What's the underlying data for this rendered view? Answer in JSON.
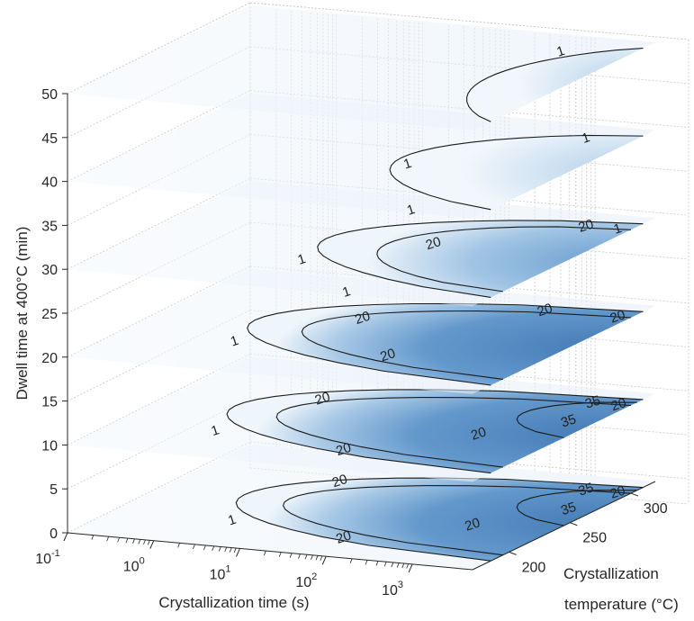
{
  "chart_data": {
    "type": "contour",
    "xlabel": "Crystallization time (s)",
    "ylabel": "Crystallization\ntemperature (°C)",
    "zlabel": "Dwell time at 400°C (min)",
    "x_scale": "log",
    "x_ticks": [
      "10",
      "10",
      "10",
      "10",
      "10"
    ],
    "x_tick_exponents": [
      "-1",
      "0",
      "1",
      "2",
      "3"
    ],
    "x_tick_values": [
      0.1,
      1,
      10,
      100,
      1000
    ],
    "y_ticks": [
      "200",
      "250",
      "300"
    ],
    "y_tick_values": [
      200,
      250,
      300
    ],
    "z_ticks": [
      "0",
      "5",
      "10",
      "15",
      "20",
      "25",
      "30",
      "35",
      "40",
      "45",
      "50"
    ],
    "z_tick_values": [
      0,
      5,
      10,
      15,
      20,
      25,
      30,
      35,
      40,
      45,
      50
    ],
    "xlim": [
      0.1,
      5000
    ],
    "ylim": [
      170,
      320
    ],
    "zlim": [
      0,
      50
    ],
    "grid": true,
    "colormap": [
      "#ffffff",
      "#dceaf6",
      "#a8cbe6",
      "#6fa6d3",
      "#3f78b4"
    ],
    "slices": [
      {
        "dwell_time": 0,
        "contour_levels": [
          "1",
          "20",
          "20",
          "20",
          "35",
          "35",
          "20"
        ]
      },
      {
        "dwell_time": 10,
        "contour_levels": [
          "1",
          "20",
          "20",
          "20",
          "35",
          "35",
          "20"
        ]
      },
      {
        "dwell_time": 20,
        "contour_levels": [
          "1",
          "1",
          "20",
          "20",
          "20",
          "20"
        ]
      },
      {
        "dwell_time": 30,
        "contour_levels": [
          "1",
          "1",
          "20",
          "20",
          "1"
        ]
      },
      {
        "dwell_time": 40,
        "contour_levels": [
          "1",
          "1"
        ]
      },
      {
        "dwell_time": 50,
        "contour_levels": [
          "1"
        ]
      }
    ]
  }
}
